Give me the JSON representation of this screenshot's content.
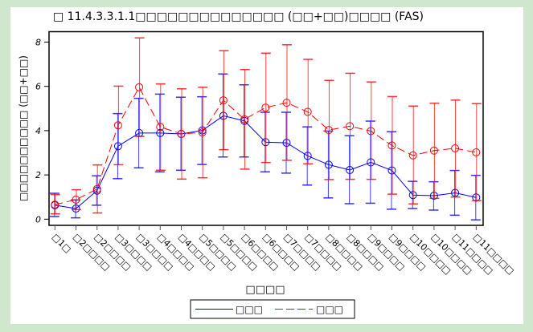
{
  "chart_data": {
    "type": "line",
    "title": "□ 11.4.3.3.1.1□□□□□□□□□□□□□□ (□□+□□)□□□□ (FAS)",
    "xlabel": "□□□□",
    "ylabel": "□□□□□□□□□□ (□□+□□)",
    "ylim": [
      0,
      8.4
    ],
    "yticks": [
      0,
      2,
      4,
      6,
      8
    ],
    "grid": false,
    "legend_position": "bottom-center",
    "categories": [
      "□1□",
      "□2□□□□",
      "□2□□□□",
      "□3□□□□",
      "□3□□□□",
      "□4□□□□",
      "□4□□□□",
      "□5□□□□",
      "□5□□□□",
      "□6□□□□",
      "□6□□□□",
      "□7□□□□",
      "□7□□□□",
      "□8□□□□",
      "□8□□□□",
      "□9□□□□",
      "□9□□□□",
      "□10□□□□",
      "□10□□□□",
      "□11□□□□",
      "□11□□□□"
    ],
    "series": [
      {
        "name": "□□□",
        "color": "#0000ff",
        "style": "solid",
        "values": [
          0.63,
          0.48,
          1.29,
          3.3,
          3.89,
          3.89,
          3.85,
          4.01,
          4.67,
          4.44,
          3.48,
          3.45,
          2.86,
          2.46,
          2.22,
          2.57,
          2.2,
          1.09,
          1.06,
          1.19,
          0.98
        ],
        "upper": [
          1.17,
          0.87,
          1.96,
          4.77,
          5.46,
          5.65,
          5.51,
          5.53,
          6.56,
          6.07,
          4.83,
          4.83,
          4.17,
          3.98,
          3.77,
          4.43,
          3.95,
          1.71,
          1.69,
          2.2,
          1.98
        ],
        "lower": [
          0.12,
          0.06,
          0.63,
          1.83,
          2.32,
          2.14,
          2.21,
          2.47,
          2.81,
          2.81,
          2.14,
          2.08,
          1.54,
          0.96,
          0.7,
          0.72,
          0.45,
          0.48,
          0.41,
          0.18,
          -0.03
        ]
      },
      {
        "name": "□□□",
        "color": "#ff0000",
        "style": "dashed",
        "values": [
          0.66,
          0.88,
          1.36,
          4.24,
          5.96,
          4.17,
          3.85,
          3.92,
          5.37,
          4.51,
          5.04,
          5.26,
          4.85,
          4.03,
          4.2,
          3.98,
          3.33,
          2.88,
          3.1,
          3.2,
          3.02
        ],
        "upper": [
          1.11,
          1.33,
          2.45,
          6.01,
          8.19,
          6.11,
          5.89,
          5.96,
          7.61,
          6.76,
          7.5,
          7.88,
          7.22,
          6.27,
          6.59,
          6.2,
          5.54,
          5.11,
          5.24,
          5.38,
          5.22
        ],
        "lower": [
          0.24,
          0.43,
          0.28,
          2.46,
          3.74,
          2.21,
          1.81,
          1.87,
          3.14,
          2.26,
          2.56,
          2.66,
          2.5,
          1.79,
          1.8,
          1.8,
          1.13,
          0.69,
          0.94,
          1.0,
          0.84
        ]
      }
    ]
  }
}
